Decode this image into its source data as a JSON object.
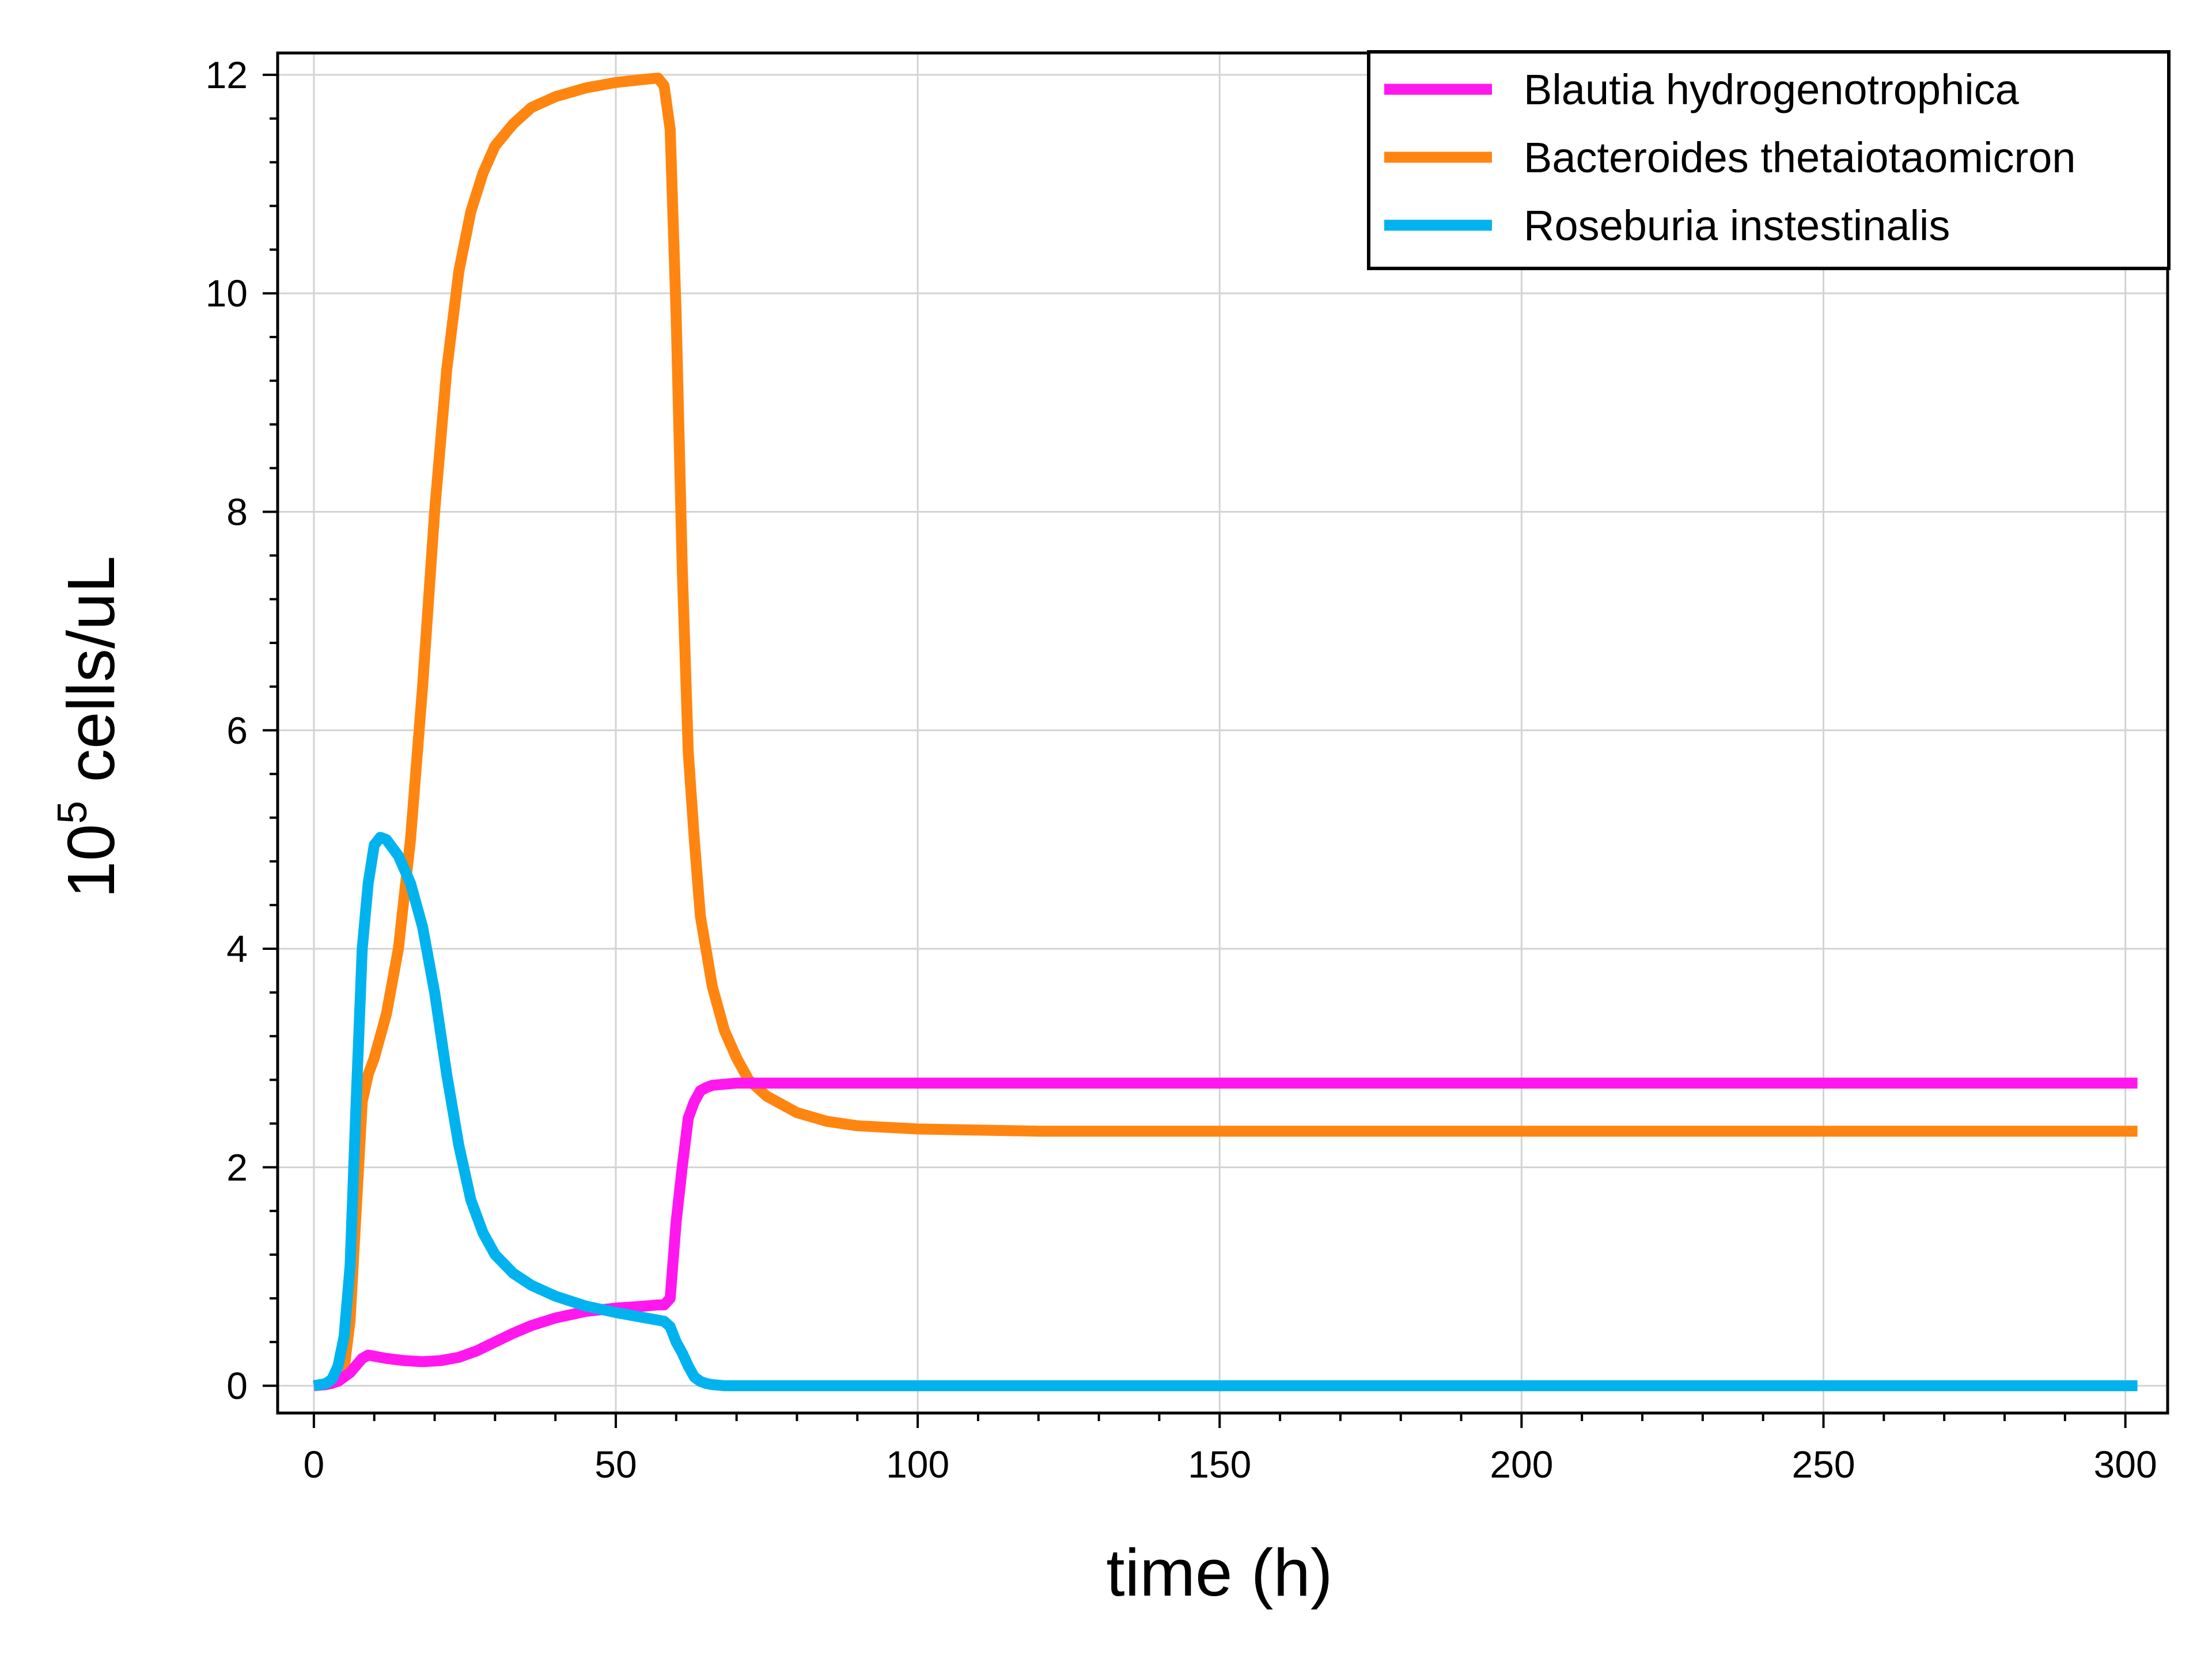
{
  "chart_data": {
    "type": "line",
    "xlabel": "time (h)",
    "ylabel_base": "10",
    "ylabel_exponent": "5",
    "ylabel_rest": " cells/uL",
    "xlim": [
      -6,
      307
    ],
    "ylim": [
      -0.25,
      12.2
    ],
    "x_ticks": [
      0,
      50,
      100,
      150,
      200,
      250,
      300
    ],
    "y_ticks": [
      0,
      2,
      4,
      6,
      8,
      10,
      12
    ],
    "x_minor_step": 10,
    "y_minor_step": 0.4,
    "grid": true,
    "legend_position": "top-right",
    "series": [
      {
        "name": "Blautia hydrogenotrophica",
        "color": "#ff17ee",
        "x": [
          0,
          2,
          4,
          6,
          8,
          9,
          10,
          12,
          15,
          18,
          21,
          24,
          27,
          30,
          33,
          36,
          40,
          45,
          50,
          55,
          57,
          58,
          59,
          60,
          61,
          62,
          63,
          64,
          65,
          66,
          68,
          70,
          75,
          80,
          90,
          100,
          150,
          200,
          250,
          302
        ],
        "y": [
          0,
          0.01,
          0.04,
          0.12,
          0.25,
          0.28,
          0.27,
          0.25,
          0.23,
          0.22,
          0.23,
          0.26,
          0.32,
          0.4,
          0.48,
          0.55,
          0.62,
          0.68,
          0.71,
          0.73,
          0.74,
          0.74,
          0.8,
          1.5,
          2.0,
          2.45,
          2.6,
          2.7,
          2.73,
          2.75,
          2.76,
          2.77,
          2.77,
          2.77,
          2.77,
          2.77,
          2.77,
          2.77,
          2.77,
          2.77
        ]
      },
      {
        "name": "Bacteroides thetaiotaomicron",
        "color": "#ff8511",
        "x": [
          0,
          3,
          5,
          6,
          7,
          8,
          9,
          10,
          12,
          14,
          16,
          18,
          20,
          22,
          24,
          26,
          28,
          30,
          33,
          36,
          40,
          45,
          50,
          55,
          57,
          58,
          59,
          60,
          61,
          62,
          63,
          64,
          66,
          68,
          70,
          72,
          75,
          80,
          85,
          90,
          100,
          120,
          150,
          200,
          250,
          302
        ],
        "y": [
          0,
          0.02,
          0.15,
          0.6,
          1.6,
          2.6,
          2.85,
          3.0,
          3.4,
          4.0,
          5.0,
          6.4,
          8.0,
          9.3,
          10.2,
          10.75,
          11.1,
          11.35,
          11.55,
          11.7,
          11.8,
          11.88,
          11.93,
          11.96,
          11.97,
          11.9,
          11.5,
          9.8,
          7.5,
          5.8,
          5.0,
          4.3,
          3.65,
          3.25,
          3.0,
          2.8,
          2.65,
          2.5,
          2.42,
          2.38,
          2.35,
          2.33,
          2.33,
          2.33,
          2.33,
          2.33
        ]
      },
      {
        "name": "Roseburia instestinalis",
        "color": "#00b3ee",
        "x": [
          0,
          2,
          3,
          4,
          5,
          6,
          7,
          8,
          9,
          10,
          11,
          12,
          14,
          16,
          18,
          20,
          22,
          24,
          26,
          28,
          30,
          33,
          36,
          40,
          45,
          50,
          55,
          57,
          58,
          59,
          60,
          61,
          62,
          63,
          64,
          65,
          66,
          68,
          70,
          80,
          100,
          150,
          200,
          250,
          302
        ],
        "y": [
          0,
          0.02,
          0.06,
          0.18,
          0.45,
          1.1,
          2.6,
          4.0,
          4.6,
          4.95,
          5.02,
          5.0,
          4.85,
          4.6,
          4.2,
          3.6,
          2.85,
          2.2,
          1.7,
          1.4,
          1.2,
          1.03,
          0.92,
          0.82,
          0.73,
          0.67,
          0.62,
          0.6,
          0.59,
          0.54,
          0.4,
          0.3,
          0.18,
          0.08,
          0.04,
          0.02,
          0.01,
          0.0,
          0.0,
          0.0,
          0.0,
          0.0,
          0.0,
          0.0,
          0.0
        ]
      }
    ]
  }
}
